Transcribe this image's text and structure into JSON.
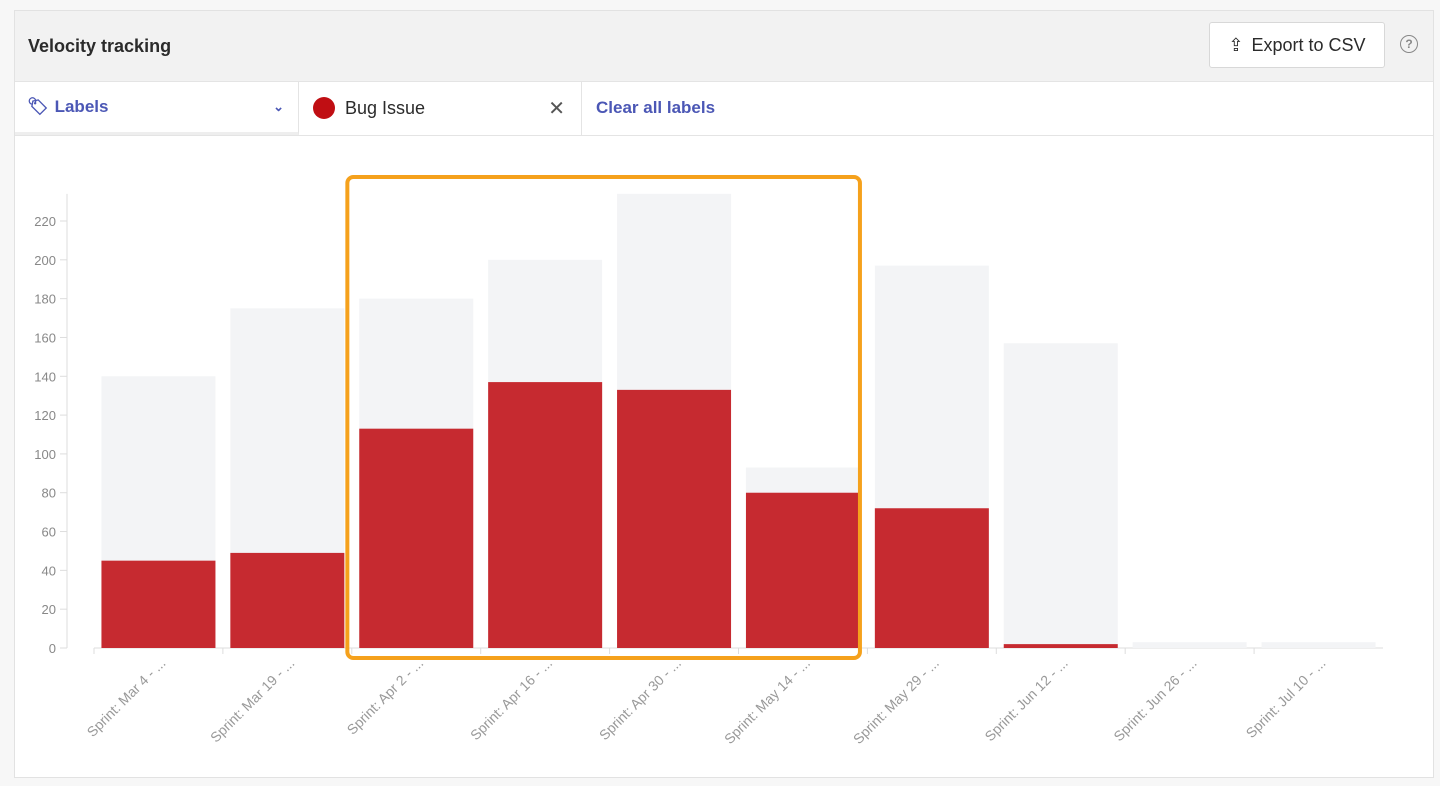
{
  "header": {
    "title": "Velocity tracking",
    "export_label": "Export to CSV",
    "help_icon": "question-circle-icon"
  },
  "filters": {
    "labels_dropdown": "Labels",
    "selected_label": "Bug Issue",
    "selected_label_color": "#c00e13",
    "clear_all": "Clear all labels"
  },
  "chart_data": {
    "type": "bar",
    "stacked": "overlay",
    "categories": [
      "Sprint: Mar 4 - ...",
      "Sprint: Mar 19 - ...",
      "Sprint: Apr 2 - ...",
      "Sprint: Apr 16 - ...",
      "Sprint: Apr 30 - ...",
      "Sprint: May 14 - ...",
      "Sprint: May 29 - ...",
      "Sprint: Jun 12 - ...",
      "Sprint: Jun 26 - ...",
      "Sprint: Jul 10 - ..."
    ],
    "series": [
      {
        "values": [
          140,
          175,
          180,
          200,
          234,
          93,
          197,
          157,
          3,
          3
        ],
        "color": "#f3f4f6"
      },
      {
        "name": "Bug Issue",
        "values": [
          45,
          49,
          113,
          137,
          133,
          80,
          72,
          2,
          0,
          0
        ],
        "color": "#c62a30"
      }
    ],
    "yticks": [
      0,
      20,
      40,
      60,
      80,
      100,
      120,
      140,
      160,
      180,
      200,
      220
    ],
    "ylim": [
      0,
      234
    ],
    "grid": false,
    "highlight": {
      "from": "Sprint: Apr 2 - ...",
      "to": "Sprint: May 14 - ...",
      "color": "#f5a11c"
    }
  }
}
